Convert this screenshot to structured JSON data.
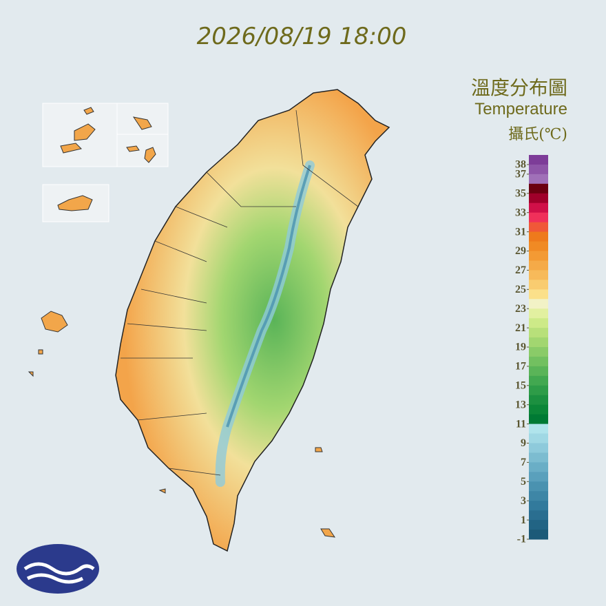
{
  "header": {
    "timestamp": "2026/08/19 18:00"
  },
  "legend": {
    "title_zh": "溫度分布圖",
    "title_en": "Temperature",
    "unit": "攝氏(℃)",
    "lim": [
      -1,
      39
    ],
    "ticks": [
      38,
      37,
      35,
      33,
      31,
      29,
      27,
      25,
      23,
      21,
      19,
      17,
      15,
      13,
      11,
      9,
      7,
      5,
      3,
      1,
      -1
    ],
    "colors": [
      "#7d3c98",
      "#8e55a8",
      "#a070b8",
      "#6b0010",
      "#a0002a",
      "#d01048",
      "#f0305a",
      "#f05838",
      "#ee7a1c",
      "#f08a24",
      "#f39a34",
      "#f5aa48",
      "#f7ba5a",
      "#f9cc70",
      "#fbe08a",
      "#f2f2c6",
      "#e2f0a0",
      "#cdea88",
      "#b8e07a",
      "#a2d670",
      "#8acb68",
      "#72c060",
      "#5ab458",
      "#42a850",
      "#2e9c48",
      "#1c9040",
      "#0c8638",
      "#007a34",
      "#b0e4ec",
      "#a0d8e4",
      "#8ecadb",
      "#7cbcd0",
      "#6aaec6",
      "#5aa0bc",
      "#4a92b0",
      "#3e86a6",
      "#327a9c",
      "#2a6e90",
      "#226484",
      "#1c5a78"
    ]
  }
}
